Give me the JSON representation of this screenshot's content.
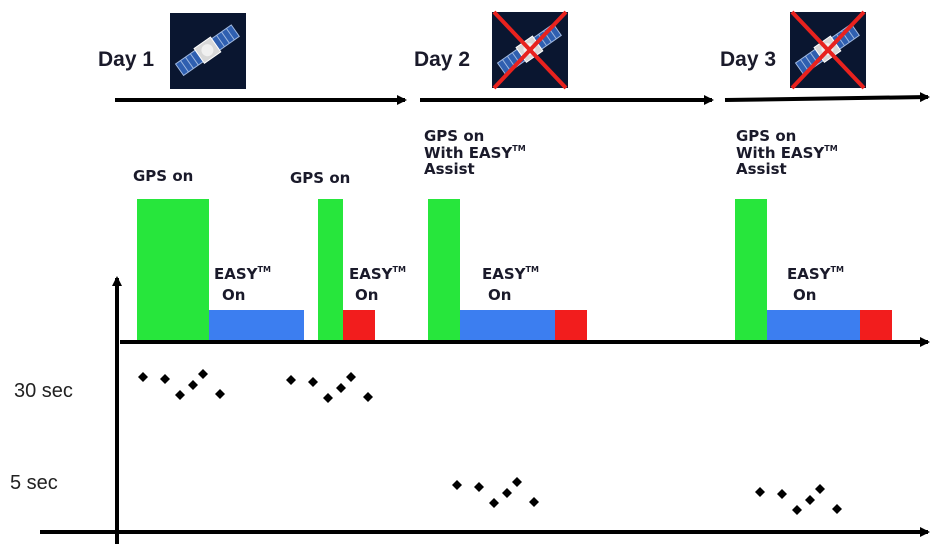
{
  "days": [
    {
      "label": "Day 1",
      "satellite_visible": true
    },
    {
      "label": "Day 2",
      "satellite_visible": false
    },
    {
      "label": "Day 3",
      "satellite_visible": false
    }
  ],
  "gps_labels": {
    "day1_first": "GPS on",
    "day1_second": "GPS on",
    "day2_line1": "GPS on",
    "day2_line2": "With EASY",
    "day2_line3": "Assist",
    "day3_line1": "GPS on",
    "day3_line2": "With EASY",
    "day3_line3": "Assist"
  },
  "easy_labels": {
    "text": "EASY",
    "tm": "TM",
    "on": "On"
  },
  "axis_labels": {
    "slow": "30 sec",
    "fast": "5 sec"
  },
  "colors": {
    "gps": "#27e63c",
    "easy": "#3c7ef0",
    "red": "#f21d1d",
    "axis": "#000000",
    "cross": "#e8221e"
  }
}
